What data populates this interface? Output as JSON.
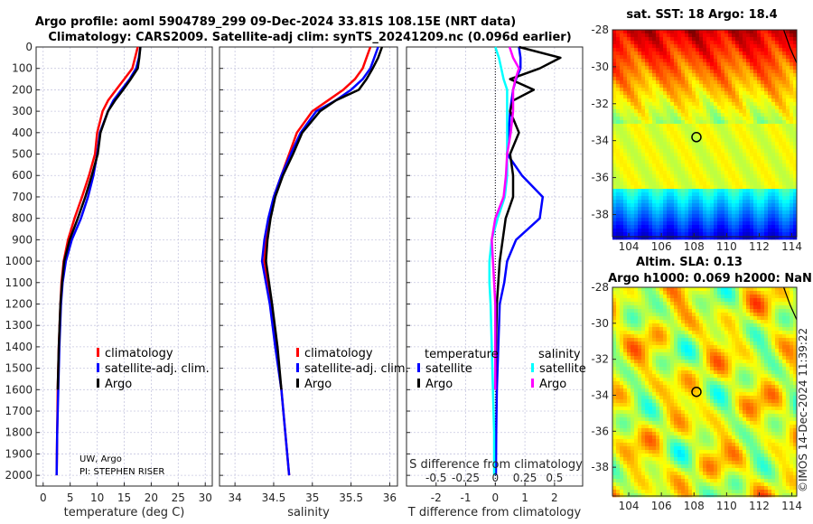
{
  "header": {
    "title_line1": "Argo profile: aoml 5904789_299 09-Dec-2024 33.81S 108.15E (NRT data)",
    "title_line2": "Climatology: CARS2009. Satellite-adj clim: synTS_20241209.nc (0.096d earlier)"
  },
  "footer_stamp": "©IMOS 14-Dec-2024 11:39:22",
  "notes": {
    "line1": "UW, Argo",
    "line2": "PI: STEPHEN RISER"
  },
  "colors": {
    "climatology": "#ff0000",
    "satellite": "#0000ff",
    "argo": "#000000",
    "sal_satellite": "#00ffff",
    "sal_argo": "#ff00ff"
  },
  "chart_data": [
    {
      "type": "line",
      "title": "",
      "xlabel": "temperature (deg C)",
      "ylabel": "",
      "xlim": [
        -1.3,
        31.3
      ],
      "ylim": [
        2050,
        0
      ],
      "xticks": [
        "0",
        "5",
        "10",
        "15",
        "20",
        "25",
        "30"
      ],
      "yticks": [
        "0",
        "100",
        "200",
        "300",
        "400",
        "500",
        "600",
        "700",
        "800",
        "900",
        "1000",
        "1100",
        "1200",
        "1300",
        "1400",
        "1500",
        "1600",
        "1700",
        "1800",
        "1900",
        "2000"
      ],
      "grid": true,
      "legend": {
        "placement": "center-right",
        "entries": [
          "climatology",
          "satellite-adj. clim.",
          "Argo"
        ]
      },
      "depth": [
        0,
        50,
        100,
        150,
        200,
        250,
        300,
        400,
        500,
        600,
        700,
        800,
        900,
        1000,
        1100,
        1200,
        1400,
        1600,
        1800,
        2000
      ],
      "series": [
        {
          "name": "climatology",
          "values": [
            17.5,
            17,
            16.5,
            15,
            13.5,
            12,
            11,
            10,
            9.6,
            8.5,
            7.2,
            5.8,
            4.6,
            3.8,
            3.4,
            3.2,
            2.9,
            2.7,
            2.6,
            2.5
          ]
        },
        {
          "name": "satellite-adj. clim.",
          "values": [
            18,
            17.7,
            17.2,
            16,
            14.5,
            13,
            12,
            10.5,
            10,
            9.3,
            8.3,
            7,
            5.3,
            4.2,
            3.6,
            3.3,
            3,
            2.8,
            2.6,
            2.5
          ]
        },
        {
          "name": "Argo",
          "values": [
            18,
            17.8,
            17.5,
            16.2,
            14.8,
            13.3,
            12,
            10.6,
            10.1,
            9,
            7.8,
            6.4,
            4.9,
            3.9,
            3.5,
            3.2,
            2.9,
            2.7,
            null,
            null
          ]
        }
      ]
    },
    {
      "type": "line",
      "xlabel": "salinity",
      "xlim": [
        33.8,
        36.1
      ],
      "ylim": [
        2050,
        0
      ],
      "xticks": [
        "34",
        "34.5",
        "35",
        "35.5",
        "36"
      ],
      "grid": true,
      "legend": {
        "placement": "center-right",
        "entries": [
          "climatology",
          "satellite-adj. clim.",
          "Argo"
        ]
      },
      "depth": [
        0,
        50,
        100,
        150,
        200,
        250,
        300,
        400,
        500,
        600,
        700,
        800,
        900,
        1000,
        1100,
        1200,
        1400,
        1600,
        1800,
        2000
      ],
      "series": [
        {
          "name": "climatology",
          "values": [
            35.75,
            35.7,
            35.65,
            35.55,
            35.4,
            35.2,
            35.0,
            34.8,
            34.7,
            34.6,
            34.5,
            34.45,
            34.4,
            34.38,
            34.42,
            34.46,
            34.53,
            34.6,
            34.65,
            34.7
          ]
        },
        {
          "name": "satellite-adj. clim.",
          "values": [
            35.85,
            35.8,
            35.75,
            35.65,
            35.5,
            35.3,
            35.05,
            34.85,
            34.72,
            34.6,
            34.5,
            34.43,
            34.38,
            34.35,
            34.4,
            34.45,
            34.52,
            34.6,
            34.65,
            34.7
          ]
        },
        {
          "name": "Argo",
          "values": [
            35.9,
            35.85,
            35.78,
            35.7,
            35.6,
            35.3,
            35.1,
            34.87,
            34.75,
            34.62,
            34.52,
            34.46,
            34.42,
            34.4,
            34.44,
            34.48,
            34.55,
            34.6,
            null,
            null
          ]
        }
      ]
    },
    {
      "type": "line",
      "xlabel": "T difference from climatology",
      "x2label": "S difference from climatology",
      "xlim": [
        -3.0,
        2.95
      ],
      "x2lim": [
        -0.75,
        0.7375
      ],
      "ylim": [
        2050,
        0
      ],
      "xticks": [
        "-2",
        "-1",
        "0",
        "1",
        "2"
      ],
      "x2ticks": [
        "-0.5",
        "-0.25",
        "0",
        "0.25",
        "0.5"
      ],
      "grid": true,
      "legend": {
        "placement": "center",
        "temperature_header": "temperature",
        "salinity_header": "salinity",
        "entries": [
          "satellite",
          "Argo",
          "satellite",
          "Argo"
        ]
      },
      "depth": [
        0,
        50,
        100,
        150,
        200,
        250,
        300,
        400,
        500,
        600,
        700,
        800,
        900,
        1000,
        1100,
        1200,
        1400,
        1600,
        1800,
        2000
      ],
      "series": [
        {
          "name": "T satellite",
          "axis": "T",
          "values": [
            0.8,
            0.85,
            0.85,
            0.7,
            0.6,
            0.55,
            0.5,
            0.45,
            0.4,
            0.9,
            1.6,
            1.5,
            0.7,
            0.4,
            0.3,
            0.15,
            0.1,
            0.05,
            0.03,
            0.02
          ]
        },
        {
          "name": "T Argo",
          "axis": "T",
          "values": [
            0.8,
            2.2,
            1.5,
            0.5,
            1.3,
            0.6,
            0.5,
            0.8,
            0.5,
            0.6,
            0.6,
            0.35,
            0.25,
            0.15,
            0.1,
            0.05,
            0.02,
            0,
            null,
            null
          ]
        },
        {
          "name": "S satellite",
          "axis": "S",
          "values": [
            0,
            0.03,
            0.05,
            0.07,
            0.1,
            0.1,
            0.1,
            0.1,
            0.1,
            0.1,
            0.08,
            0.02,
            -0.03,
            -0.05,
            -0.05,
            -0.04,
            -0.03,
            -0.02,
            -0.01,
            -0.01
          ]
        },
        {
          "name": "S Argo",
          "axis": "S",
          "values": [
            0.12,
            0.15,
            0.2,
            0.17,
            0.15,
            0.15,
            0.15,
            0.13,
            0.1,
            0.09,
            0.07,
            0.0,
            -0.03,
            -0.02,
            -0.01,
            0,
            0,
            0,
            null,
            null
          ]
        }
      ]
    },
    {
      "type": "heatmap",
      "title": "sat. SST: 18 Argo: 18.4",
      "xlim": [
        103,
        114.3
      ],
      "ylim": [
        -39.2,
        -28
      ],
      "xticks": [
        "104",
        "106",
        "108",
        "110",
        "112",
        "114"
      ],
      "yticks": [
        "-28",
        "-30",
        "-32",
        "-34",
        "-36",
        "-38"
      ],
      "marker": {
        "lon": 108.15,
        "lat": -33.81
      }
    },
    {
      "type": "heatmap",
      "title": "Altim. SLA: 0.13",
      "subtitle": "Argo h1000: 0.069 h2000: NaN",
      "xlim": [
        103,
        114.3
      ],
      "ylim": [
        -39.6,
        -28
      ],
      "xticks": [
        "104",
        "106",
        "108",
        "110",
        "112",
        "114"
      ],
      "yticks": [
        "-28",
        "-30",
        "-32",
        "-34",
        "-36",
        "-38"
      ],
      "marker": {
        "lon": 108.15,
        "lat": -33.81
      }
    }
  ]
}
